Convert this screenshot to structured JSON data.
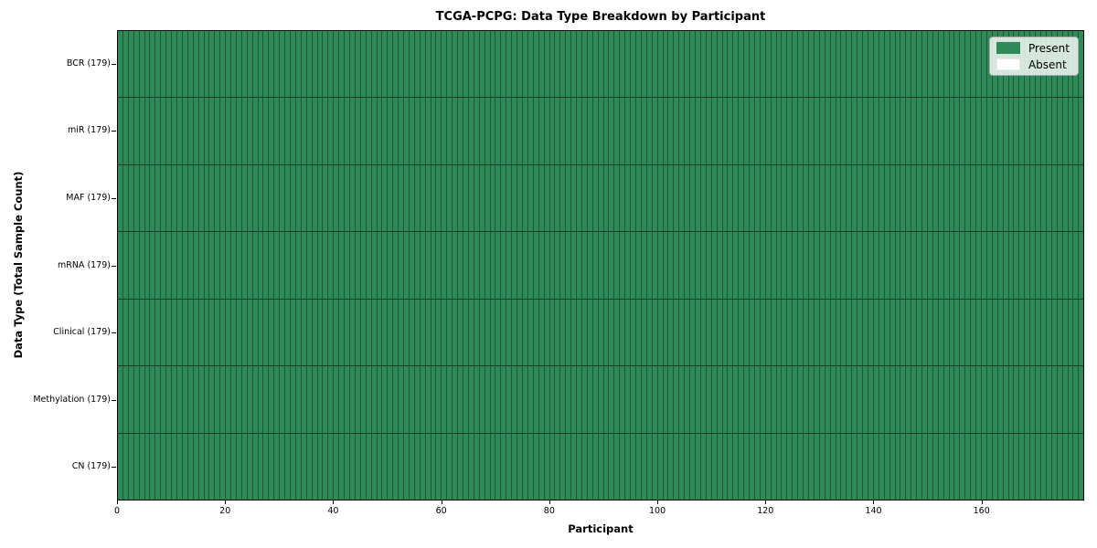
{
  "chart_data": {
    "type": "heatmap",
    "title": "TCGA-PCPG: Data Type Breakdown by Participant",
    "xlabel": "Participant",
    "ylabel": "Data Type (Total Sample Count)",
    "n_participants": 179,
    "xlim": [
      0,
      179
    ],
    "x_ticks": [
      0,
      20,
      40,
      60,
      80,
      100,
      120,
      140,
      160
    ],
    "rows": [
      {
        "label": "BCR (179)",
        "data_type": "BCR",
        "total_samples": 179,
        "present": 179,
        "absent": 0
      },
      {
        "label": "miR (179)",
        "data_type": "miR",
        "total_samples": 179,
        "present": 179,
        "absent": 0
      },
      {
        "label": "MAF (179)",
        "data_type": "MAF",
        "total_samples": 179,
        "present": 179,
        "absent": 0
      },
      {
        "label": "mRNA (179)",
        "data_type": "mRNA",
        "total_samples": 179,
        "present": 179,
        "absent": 0
      },
      {
        "label": "Clinical (179)",
        "data_type": "Clinical",
        "total_samples": 179,
        "present": 179,
        "absent": 0
      },
      {
        "label": "Methylation (179)",
        "data_type": "Methylation",
        "total_samples": 179,
        "present": 179,
        "absent": 0
      },
      {
        "label": "CN (179)",
        "data_type": "CN",
        "total_samples": 179,
        "present": 179,
        "absent": 0
      }
    ],
    "legend": [
      {
        "label": "Present",
        "color": "#2e8b57"
      },
      {
        "label": "Absent",
        "color": "#ffffff"
      }
    ],
    "legend_position": "upper right",
    "grid": false,
    "colors": {
      "present": "#2e8b57",
      "absent": "#ffffff",
      "cell_edge": "#1e5a3a",
      "row_edge": "#1a3d2a",
      "spine": "#000000"
    }
  }
}
